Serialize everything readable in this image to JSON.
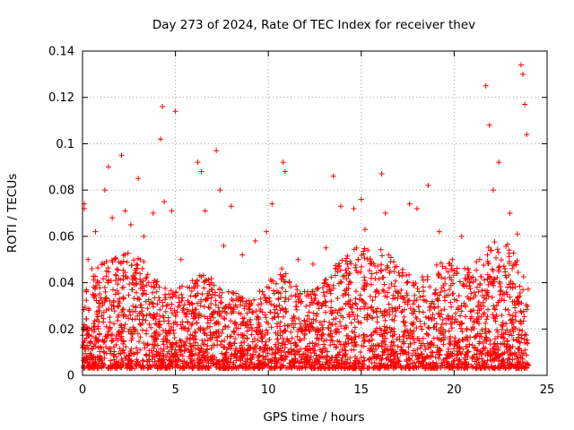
{
  "chart_data": {
    "type": "scatter",
    "title": "Day 273 of 2024, Rate Of TEC Index for receiver thev",
    "xlabel": "GPS time / hours",
    "ylabel": "ROTI / TECUs",
    "xlim": [
      0,
      25
    ],
    "ylim": [
      0,
      0.14
    ],
    "x_ticks": [
      "0",
      "5",
      "10",
      "15",
      "20",
      "25"
    ],
    "y_ticks": [
      "0",
      "0.02",
      "0.04",
      "0.06",
      "0.08",
      "0.1",
      "0.12",
      "0.14"
    ],
    "grid": true,
    "marker": "+",
    "marker_color": "#ff0000",
    "legend": false,
    "series": [
      {
        "x": [
          0.1,
          0.1,
          0.3,
          0.5,
          0.7,
          1.2,
          1.4,
          1.6,
          2.1,
          2.3,
          2.6,
          3.0,
          3.3,
          3.8,
          4.2,
          4.3,
          4.4,
          4.8,
          5.0,
          5.3,
          6.2,
          6.4,
          6.6,
          7.2,
          7.4,
          7.6,
          8.0,
          8.6,
          9.3,
          9.9,
          10.2,
          10.8,
          10.9,
          11.6,
          12.4,
          13.1,
          13.5,
          13.9,
          14.6,
          15.0,
          15.2,
          16.1,
          16.3,
          16.9,
          17.6,
          18.0,
          18.6,
          19.2,
          19.9,
          20.4,
          21.2,
          21.7,
          21.9,
          22.1,
          22.4,
          23.0,
          23.4,
          23.6,
          23.7,
          23.8,
          23.9
        ],
        "y": [
          0.074,
          0.072,
          0.05,
          0.046,
          0.062,
          0.08,
          0.09,
          0.068,
          0.095,
          0.071,
          0.065,
          0.085,
          0.06,
          0.07,
          0.102,
          0.116,
          0.075,
          0.071,
          0.114,
          0.05,
          0.092,
          0.088,
          0.071,
          0.097,
          0.08,
          0.056,
          0.073,
          0.052,
          0.058,
          0.062,
          0.074,
          0.092,
          0.088,
          0.05,
          0.048,
          0.055,
          0.086,
          0.073,
          0.072,
          0.076,
          0.063,
          0.087,
          0.07,
          0.047,
          0.074,
          0.072,
          0.082,
          0.062,
          0.05,
          0.06,
          0.049,
          0.125,
          0.108,
          0.08,
          0.092,
          0.07,
          0.061,
          0.134,
          0.13,
          0.117,
          0.104
        ]
      }
    ]
  }
}
